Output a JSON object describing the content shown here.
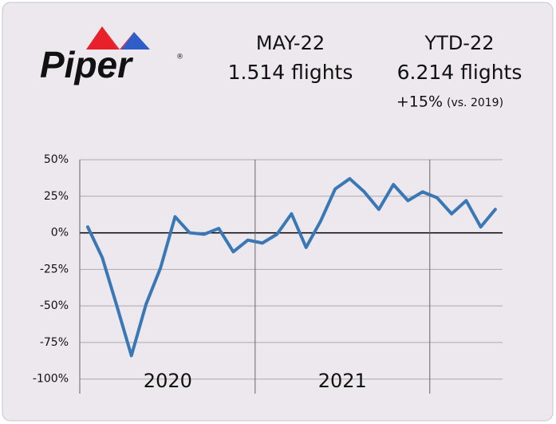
{
  "header": {
    "logo": "Piper",
    "logo_mark": "®",
    "month_label": "MAY-22",
    "month_value": "1.514 flights",
    "ytd_label": "YTD-22",
    "ytd_value": "6.214 flights",
    "ytd_change": "+15%",
    "ytd_change_note": "(vs. 2019)"
  },
  "chart_data": {
    "type": "line",
    "categories": [
      null,
      null,
      null,
      null,
      null,
      null,
      null,
      null,
      null,
      null,
      null,
      null,
      null,
      null,
      null,
      null,
      null,
      null,
      null,
      null,
      null,
      null,
      null,
      null,
      null,
      null,
      null,
      null,
      null
    ],
    "year_labels": [
      "2020",
      "2021"
    ],
    "series": [
      {
        "color": "#3a78b5",
        "values": [
          4,
          -17,
          -50,
          -84,
          -49,
          -24,
          11,
          0,
          -1,
          3,
          -13,
          -5,
          -7,
          -1,
          13,
          -10,
          8,
          30,
          37,
          28,
          16,
          33,
          22,
          28,
          24,
          13,
          22,
          4,
          16
        ]
      }
    ],
    "ylim": [
      -110,
      50
    ],
    "yticks": [
      {
        "value": 50,
        "label": "50%"
      },
      {
        "value": 25,
        "label": "25%"
      },
      {
        "value": 0,
        "label": "0%"
      },
      {
        "value": -25,
        "label": "-25%"
      },
      {
        "value": -50,
        "label": "-50%"
      },
      {
        "value": -75,
        "label": "-75%"
      },
      {
        "value": -100,
        "label": "-100%"
      }
    ],
    "grid": true
  }
}
